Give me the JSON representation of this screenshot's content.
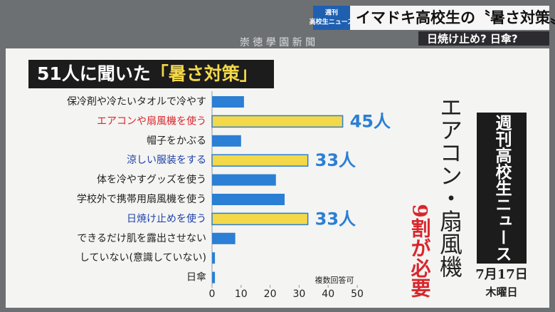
{
  "header": {
    "logo_top": "週刊",
    "logo_bottom": "高校生ニュース",
    "headline": "イマドキ高校生の〝暑さ対策〟",
    "subheadline": "日焼け止め? 日傘?",
    "newspaper": "崇 徳 學 園 新 聞"
  },
  "chart_data": {
    "type": "bar",
    "orientation": "horizontal",
    "title": [
      "51人に聞いた",
      "「暑さ対策」"
    ],
    "categories": [
      "保冷剤や冷たいタオルで冷やす",
      "エアコンや扇風機を使う",
      "帽子をかぶる",
      "涼しい服装をする",
      "体を冷やすグッズを使う",
      "学校外で携帯用扇風機を使う",
      "日焼け止めを使う",
      "できるだけ肌を露出させない",
      "していない(意識していない)",
      "日傘"
    ],
    "values": [
      11,
      45,
      10,
      33,
      22,
      25,
      33,
      8,
      1,
      1
    ],
    "value_labels": [
      null,
      "45人",
      null,
      "33人",
      null,
      null,
      "33人",
      null,
      null,
      null
    ],
    "colors": [
      "#2b7fd4",
      "#f3d84a",
      "#2b7fd4",
      "#f3d84a",
      "#2b7fd4",
      "#2b7fd4",
      "#f3d84a",
      "#2b7fd4",
      "#2b7fd4",
      "#2b7fd4"
    ],
    "label_colors": [
      "#222",
      "#d9262c",
      "#222",
      "#1d3fa8",
      "#222",
      "#222",
      "#1d3fa8",
      "#222",
      "#222",
      "#222"
    ],
    "xlim": [
      0,
      50
    ],
    "xticks": [
      0,
      10,
      20,
      30,
      40,
      50
    ],
    "annotation": "複数回答可"
  },
  "side": {
    "caption": "エアコン・扇風機",
    "emphasis": "9割が必要",
    "program": "週刊高校生ニュース",
    "date": "7月17日",
    "weekday": "木曜日"
  }
}
